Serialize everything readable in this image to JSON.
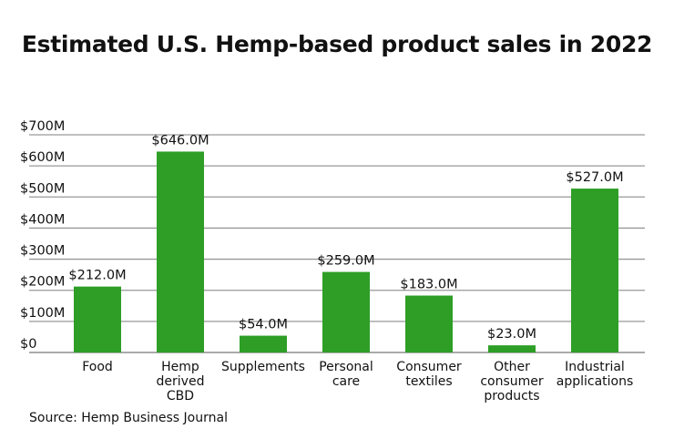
{
  "chart_data": {
    "type": "bar",
    "title": "Estimated U.S. Hemp-based product sales in 2022",
    "categories": [
      [
        "Food"
      ],
      [
        "Hemp",
        "derived",
        "CBD"
      ],
      [
        "Supplements"
      ],
      [
        "Personal",
        "care"
      ],
      [
        "Consumer",
        "textiles"
      ],
      [
        "Other",
        "consumer",
        "products"
      ],
      [
        "Industrial",
        "applications"
      ]
    ],
    "values": [
      212.0,
      646.0,
      54.0,
      259.0,
      183.0,
      23.0,
      527.0
    ],
    "data_labels": [
      "$212.0M",
      "$646.0M",
      "$54.0M",
      "$259.0M",
      "$183.0M",
      "$23.0M",
      "$527.0M"
    ],
    "yticks": [
      0,
      100,
      200,
      300,
      400,
      500,
      600,
      700
    ],
    "ytick_labels": [
      "$0",
      "$100M",
      "$200M",
      "$300M",
      "$400M",
      "$500M",
      "$600M",
      "$700M"
    ],
    "ylim": [
      0,
      700
    ],
    "xlabel": "",
    "ylabel": "",
    "grid": true,
    "bar_color": "#2e9e26",
    "source": "Source: Hemp Business Journal"
  }
}
